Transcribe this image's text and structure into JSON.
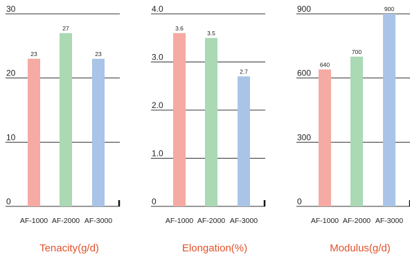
{
  "chart_data": [
    {
      "type": "bar",
      "title": "Tenacity(g/d)",
      "categories": [
        "AF-1000",
        "AF-2000",
        "AF-3000"
      ],
      "values": [
        23,
        27,
        23
      ],
      "value_labels": [
        "23",
        "27",
        "23"
      ],
      "ylim": [
        0,
        30
      ],
      "yticks": [
        "0",
        "10",
        "20",
        "30"
      ],
      "grid": true
    },
    {
      "type": "bar",
      "title": "Elongation(%)",
      "categories": [
        "AF-1000",
        "AF-2000",
        "AF-3000"
      ],
      "values": [
        3.6,
        3.5,
        2.7
      ],
      "value_labels": [
        "3.6",
        "3.5",
        "2.7"
      ],
      "ylim": [
        0,
        4.0
      ],
      "yticks": [
        "0",
        "1.0",
        "2.0",
        "3.0",
        "4.0"
      ],
      "grid": true
    },
    {
      "type": "bar",
      "title": "Modulus(g/d)",
      "categories": [
        "AF-1000",
        "AF-2000",
        "AF-3000"
      ],
      "values": [
        640,
        700,
        900
      ],
      "value_labels": [
        "640",
        "700",
        "900"
      ],
      "ylim": [
        0,
        900
      ],
      "yticks": [
        "0",
        "300",
        "600",
        "900"
      ],
      "grid": true
    }
  ],
  "colors": {
    "bars": [
      "#f5aaa3",
      "#aad9b4",
      "#a9c4e6"
    ],
    "title": "#e2512a",
    "grid": "#333333"
  }
}
